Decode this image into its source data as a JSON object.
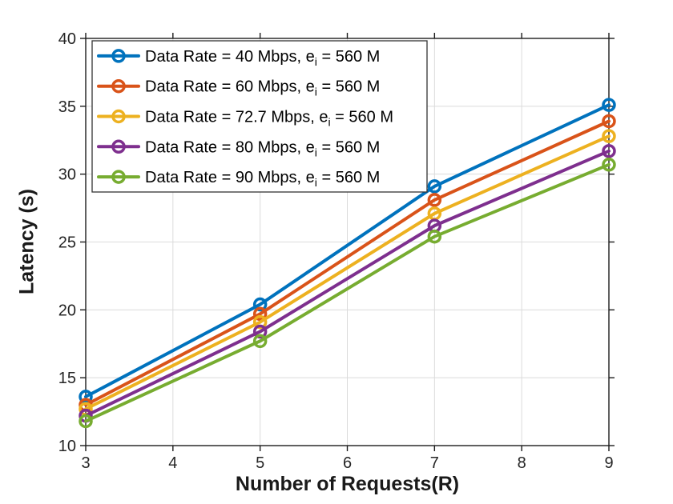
{
  "figure": {
    "background": "#ffffff"
  },
  "style": {
    "grid_color": "#dbdbdb",
    "axis_color": "#1c1c1c",
    "tick_label_color": "#262626",
    "label_color": "#1a1a1a",
    "legend_border_color": "#333333",
    "legend_background": "#ffffff"
  },
  "chart_data": {
    "type": "line",
    "title": "",
    "xlabel": "Number of Requests(R)",
    "ylabel": "Latency (s)",
    "xlim": [
      3,
      9
    ],
    "ylim": [
      10,
      40
    ],
    "xticks": [
      3,
      4,
      5,
      6,
      7,
      8,
      9
    ],
    "yticks": [
      10,
      15,
      20,
      25,
      30,
      35,
      40
    ],
    "grid": true,
    "legend_position": "top-left",
    "marker": "o",
    "x": [
      3,
      5,
      7,
      9
    ],
    "series": [
      {
        "name": "data-rate-40-mbps",
        "label": "Data Rate = 40 Mbps, e_i = 560 M",
        "label_parts": [
          "Data Rate = 40 Mbps, e",
          "i",
          " = 560 M"
        ],
        "color": "#0072BD",
        "values": [
          13.6,
          20.4,
          29.1,
          35.1
        ]
      },
      {
        "name": "data-rate-60-mbps",
        "label": "Data Rate = 60 Mbps, e_i = 560 M",
        "label_parts": [
          "Data Rate = 60 Mbps, e",
          "i",
          " = 560 M"
        ],
        "color": "#D95319",
        "values": [
          13.0,
          19.7,
          28.1,
          33.9
        ]
      },
      {
        "name": "data-rate-72.7-mbps",
        "label": "Data Rate = 72.7 Mbps, e_i = 560 M",
        "label_parts": [
          "Data Rate = 72.7 Mbps, e",
          "i",
          " = 560 M"
        ],
        "color": "#EDB120",
        "values": [
          12.7,
          19.1,
          27.1,
          32.8
        ]
      },
      {
        "name": "data-rate-80-mbps",
        "label": "Data Rate = 80 Mbps, e_i = 560 M",
        "label_parts": [
          "Data Rate = 80 Mbps, e",
          "i",
          " = 560 M"
        ],
        "color": "#7E2F8E",
        "values": [
          12.2,
          18.4,
          26.2,
          31.7
        ]
      },
      {
        "name": "data-rate-90-mbps",
        "label": "Data Rate = 90 Mbps, e_i = 560 M",
        "label_parts": [
          "Data Rate = 90 Mbps, e",
          "i",
          " = 560 M"
        ],
        "color": "#77AC30",
        "values": [
          11.8,
          17.7,
          25.4,
          30.7
        ]
      }
    ]
  }
}
